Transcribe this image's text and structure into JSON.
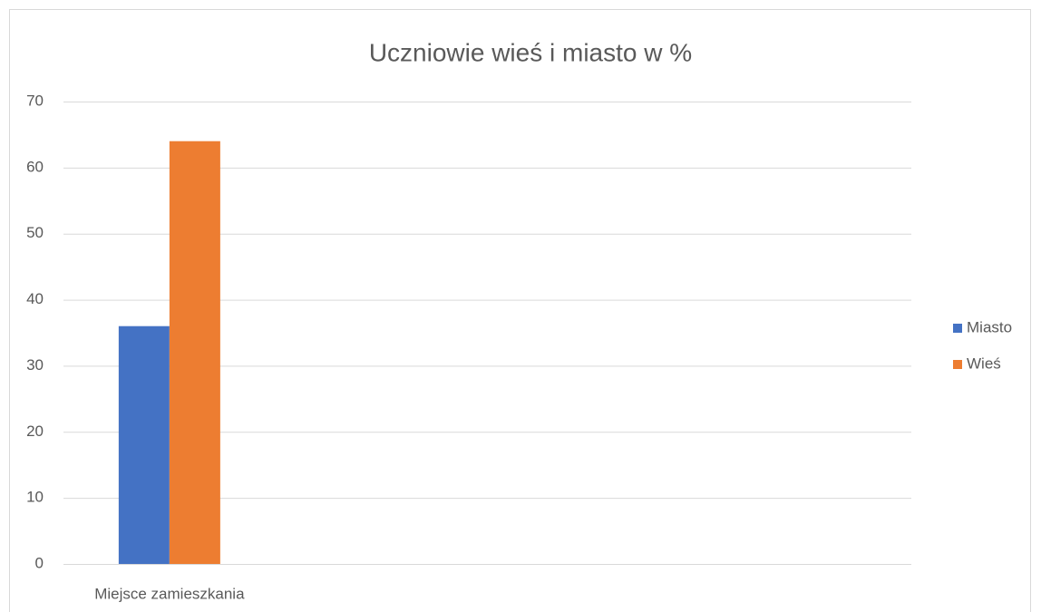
{
  "chart_data": {
    "type": "bar",
    "title": "Uczniowie wieś i miasto w %",
    "categories": [
      "Miejsce zamieszkania",
      null,
      null,
      null
    ],
    "series": [
      {
        "name": "Miasto",
        "color": "#4472c4",
        "values": [
          36,
          null,
          null,
          null
        ]
      },
      {
        "name": "Wieś",
        "color": "#ed7d31",
        "values": [
          64,
          null,
          null,
          null
        ]
      }
    ],
    "ylim": [
      0,
      70
    ],
    "yticks": [
      0,
      10,
      20,
      30,
      40,
      50,
      60,
      70
    ],
    "grid": true,
    "legend": "right"
  }
}
